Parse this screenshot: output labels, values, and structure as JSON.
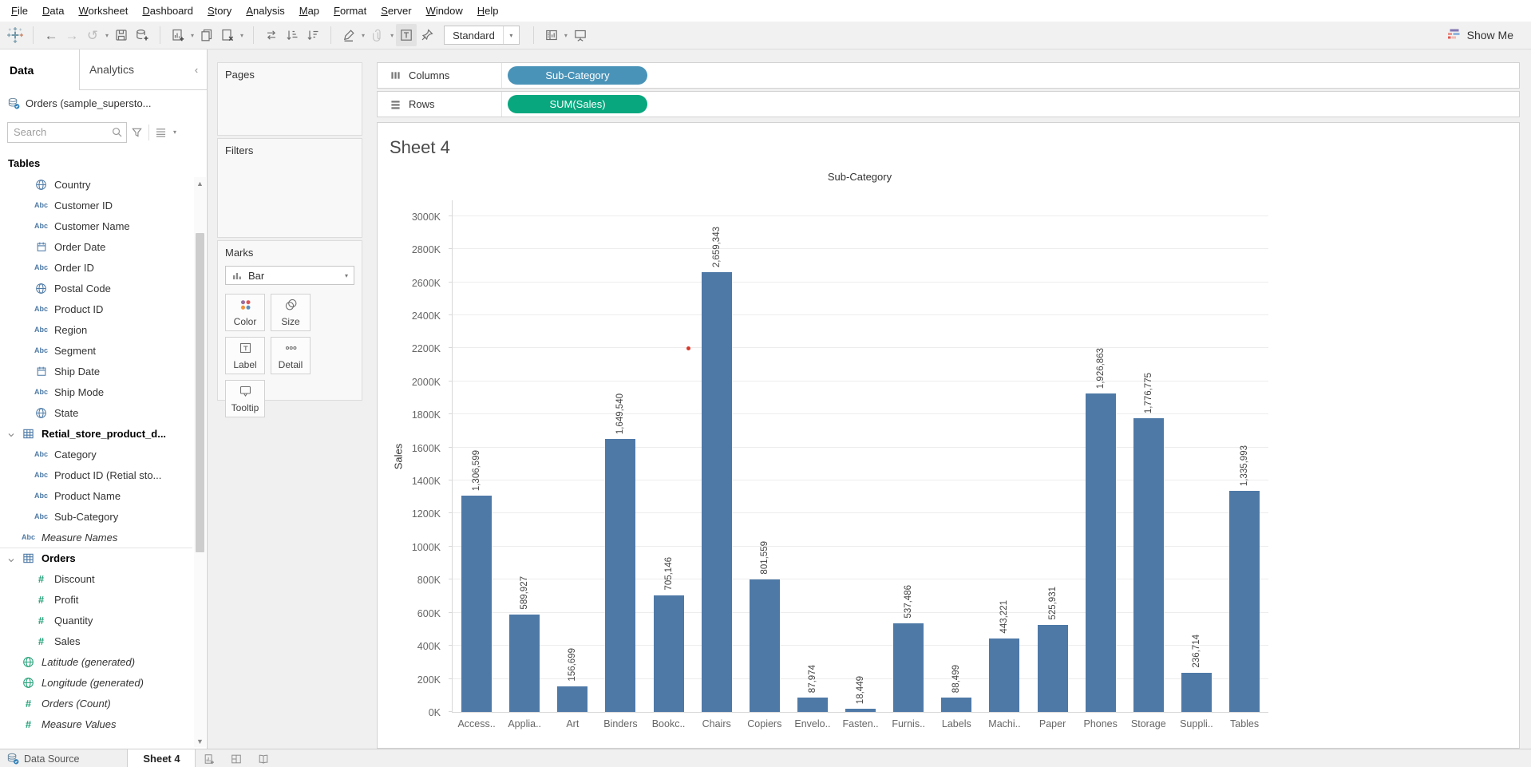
{
  "menu": {
    "items": [
      "File",
      "Data",
      "Worksheet",
      "Dashboard",
      "Story",
      "Analysis",
      "Map",
      "Format",
      "Server",
      "Window",
      "Help"
    ]
  },
  "toolbar": {
    "fit_value": "Standard",
    "show_me_label": "Show Me",
    "buttons": [
      {
        "name": "tableau-logo",
        "icon": "logo"
      },
      {
        "name": "separator"
      },
      {
        "name": "undo-button",
        "icon": "back"
      },
      {
        "name": "redo-button",
        "icon": "forward",
        "disabled": true
      },
      {
        "name": "replay-button",
        "icon": "replay",
        "disabled": true,
        "caret": true
      },
      {
        "name": "save-button",
        "icon": "save"
      },
      {
        "name": "add-data-source-button",
        "icon": "add-data"
      },
      {
        "name": "separator"
      },
      {
        "name": "new-worksheet-button",
        "icon": "new-worksheet",
        "caret": true
      },
      {
        "name": "duplicate-sheet-button",
        "icon": "duplicate"
      },
      {
        "name": "clear-sheet-button",
        "icon": "clear-sheet",
        "caret": true
      },
      {
        "name": "separator"
      },
      {
        "name": "swap-rows-columns-button",
        "icon": "swap"
      },
      {
        "name": "sort-ascending-button",
        "icon": "sort-asc"
      },
      {
        "name": "sort-descending-button",
        "icon": "sort-desc"
      },
      {
        "name": "separator"
      },
      {
        "name": "highlight-button",
        "icon": "highlight",
        "caret": true
      },
      {
        "name": "format-button",
        "icon": "paperclip",
        "disabled": true,
        "caret": true
      },
      {
        "name": "show-mark-labels-button",
        "icon": "mark-labels",
        "active": true
      },
      {
        "name": "fix-axes-button",
        "icon": "pin"
      },
      {
        "name": "fit-selector"
      },
      {
        "name": "separator"
      },
      {
        "name": "show-hide-cards-button",
        "icon": "cards",
        "caret": true
      },
      {
        "name": "presentation-mode-button",
        "icon": "presentation"
      }
    ]
  },
  "sidebar": {
    "tabs": {
      "data": "Data",
      "analytics": "Analytics"
    },
    "datasource": "Orders (sample_supersto...",
    "search_placeholder": "Search",
    "tables_header": "Tables",
    "fields": [
      {
        "label": "Country",
        "icon": "globe",
        "color": "blue",
        "indent": 2
      },
      {
        "label": "Customer ID",
        "icon": "abc",
        "color": "blue",
        "indent": 2
      },
      {
        "label": "Customer Name",
        "icon": "abc",
        "color": "blue",
        "indent": 2
      },
      {
        "label": "Order Date",
        "icon": "date",
        "color": "blue",
        "indent": 2
      },
      {
        "label": "Order ID",
        "icon": "abc",
        "color": "blue",
        "indent": 2
      },
      {
        "label": "Postal Code",
        "icon": "globe",
        "color": "blue",
        "indent": 2
      },
      {
        "label": "Product ID",
        "icon": "abc",
        "color": "blue",
        "indent": 2
      },
      {
        "label": "Region",
        "icon": "abc",
        "color": "blue",
        "indent": 2
      },
      {
        "label": "Segment",
        "icon": "abc",
        "color": "blue",
        "indent": 2
      },
      {
        "label": "Ship Date",
        "icon": "date",
        "color": "blue",
        "indent": 2
      },
      {
        "label": "Ship Mode",
        "icon": "abc",
        "color": "blue",
        "indent": 2
      },
      {
        "label": "State",
        "icon": "globe",
        "color": "blue",
        "indent": 2
      },
      {
        "label": "Retial_store_product_d...",
        "icon": "table",
        "color": "blue",
        "indent": 0,
        "bold": true,
        "expander": true
      },
      {
        "label": "Category",
        "icon": "abc",
        "color": "blue",
        "indent": 2
      },
      {
        "label": "Product ID (Retial sto...",
        "icon": "abc",
        "color": "blue",
        "indent": 2
      },
      {
        "label": "Product Name",
        "icon": "abc",
        "color": "blue",
        "indent": 2
      },
      {
        "label": "Sub-Category",
        "icon": "abc",
        "color": "blue",
        "indent": 2
      },
      {
        "label": "Measure Names",
        "icon": "abc",
        "color": "blue",
        "indent": 1,
        "italic": true
      },
      {
        "label": "Orders",
        "icon": "table",
        "color": "blue",
        "indent": 0,
        "bold": true,
        "expander": true,
        "divider": true
      },
      {
        "label": "Discount",
        "icon": "hash",
        "color": "green",
        "indent": 2
      },
      {
        "label": "Profit",
        "icon": "hash",
        "color": "green",
        "indent": 2
      },
      {
        "label": "Quantity",
        "icon": "hash",
        "color": "green",
        "indent": 2
      },
      {
        "label": "Sales",
        "icon": "hash",
        "color": "green",
        "indent": 2
      },
      {
        "label": "Latitude (generated)",
        "icon": "globe",
        "color": "green",
        "indent": 1,
        "italic": true
      },
      {
        "label": "Longitude (generated)",
        "icon": "globe",
        "color": "green",
        "indent": 1,
        "italic": true
      },
      {
        "label": "Orders (Count)",
        "icon": "hash",
        "color": "green",
        "indent": 1,
        "italic": true
      },
      {
        "label": "Measure Values",
        "icon": "hash",
        "color": "green",
        "indent": 1,
        "italic": true
      }
    ]
  },
  "cards": {
    "pages_title": "Pages",
    "filters_title": "Filters",
    "marks_title": "Marks",
    "mark_type": "Bar",
    "mark_buttons": [
      {
        "label": "Color",
        "icon": "color"
      },
      {
        "label": "Size",
        "icon": "size"
      },
      {
        "label": "Label",
        "icon": "label"
      },
      {
        "label": "Detail",
        "icon": "detail"
      },
      {
        "label": "Tooltip",
        "icon": "tooltip"
      }
    ]
  },
  "shelves": {
    "columns_label": "Columns",
    "rows_label": "Rows",
    "columns_pills": [
      {
        "label": "Sub-Category",
        "color": "#4a93b8"
      }
    ],
    "rows_pills": [
      {
        "label": "SUM(Sales)",
        "color": "#08a77e"
      }
    ]
  },
  "sheet": {
    "title": "Sheet 4"
  },
  "chart_data": {
    "type": "bar",
    "title": "Sub-Category",
    "xlabel": "",
    "ylabel": "Sales",
    "categories": [
      "Access..",
      "Applia..",
      "Art",
      "Binders",
      "Bookc..",
      "Chairs",
      "Copiers",
      "Envelo..",
      "Fasten..",
      "Furnis..",
      "Labels",
      "Machi..",
      "Paper",
      "Phones",
      "Storage",
      "Suppli..",
      "Tables"
    ],
    "values": [
      1306599,
      589927,
      156699,
      1649540,
      705146,
      2659343,
      801559,
      87974,
      18449,
      537486,
      88499,
      443221,
      525931,
      1926863,
      1776775,
      236714,
      1335993
    ],
    "value_labels": [
      "1,306,599",
      "589,927",
      "156,699",
      "1,649,540",
      "705,146",
      "2,659,343",
      "801,559",
      "87,974",
      "18,449",
      "537,486",
      "88,499",
      "443,221",
      "525,931",
      "1,926,863",
      "1,776,775",
      "236,714",
      "1,335,993"
    ],
    "y_ticks": [
      "0K",
      "200K",
      "400K",
      "600K",
      "800K",
      "1000K",
      "1200K",
      "1400K",
      "1600K",
      "1800K",
      "2000K",
      "2200K",
      "2400K",
      "2600K",
      "2800K",
      "3000K"
    ],
    "y_tick_values": [
      0,
      200000,
      400000,
      600000,
      800000,
      1000000,
      1200000,
      1400000,
      1600000,
      1800000,
      2000000,
      2200000,
      2400000,
      2600000,
      2800000,
      3000000
    ],
    "ylim": [
      0,
      3100000
    ],
    "bar_color": "#4e79a7",
    "grid": true,
    "legend": "none"
  },
  "colors": {
    "dimension_icon": "#4f7ba7",
    "measure_icon": "#23a178",
    "pill_dimension": "#4a93b8",
    "pill_measure": "#08a77e",
    "red_dot": "#d8392c"
  },
  "statusbar": {
    "data_source_label": "Data Source",
    "active_sheet_tab": "Sheet 4"
  }
}
